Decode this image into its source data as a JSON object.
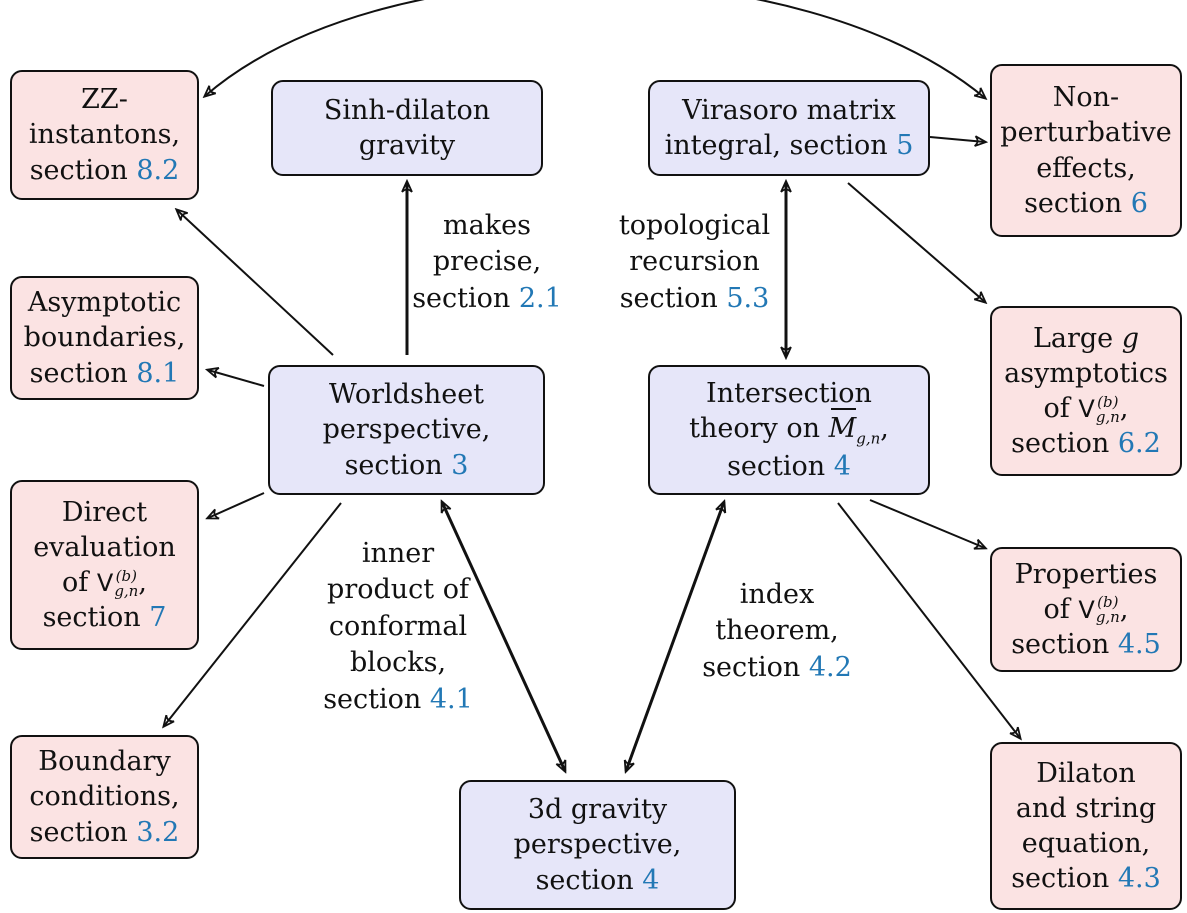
{
  "nodes": {
    "sinh_dilaton": {
      "lines": [
        "Sinh-dilaton",
        "gravity"
      ]
    },
    "virasoro": {
      "line1": "Virasoro matrix",
      "line2_text": "integral, section ",
      "ref": "5"
    },
    "worldsheet": {
      "line1": "Worldsheet",
      "line2": "perspective,",
      "line3_text": "section ",
      "ref": "3"
    },
    "intersection": {
      "line1": "Intersection",
      "line2_text": "theory on ",
      "moduli_symbol": "M",
      "moduli_sub": "g,n",
      "line2_suffix": ",",
      "line3_text": "section ",
      "ref": "4"
    },
    "gravity3d": {
      "line1": "3d gravity",
      "line2": "perspective,",
      "line3_text": "section ",
      "ref": "4"
    },
    "zz": {
      "line1": "ZZ-",
      "line2": "instantons,",
      "line3_text": "section ",
      "ref": "8.2"
    },
    "asymptotic": {
      "line1": "Asymptotic",
      "line2": "boundaries,",
      "line3_text": "section ",
      "ref": "8.1"
    },
    "direct": {
      "line1": "Direct",
      "line2": "evaluation",
      "line3_prefix": "of ",
      "vol_symbol": "V",
      "vol_sup": "(b)",
      "vol_sub": "g,n",
      "line3_suffix": ",",
      "line4_text": "section ",
      "ref": "7"
    },
    "boundary": {
      "line1": "Boundary",
      "line2": "conditions,",
      "line3_text": "section ",
      "ref": "3.2"
    },
    "nonpert": {
      "line1": "Non-",
      "line2": "perturbative",
      "line3": "effects,",
      "line4_text": "section ",
      "ref": "6"
    },
    "largeg": {
      "line1_text": "Large ",
      "line1_var": "g",
      "line2": "asymptotics",
      "line3_prefix": "of ",
      "vol_symbol": "V",
      "vol_sup": "(b)",
      "vol_sub": "g,n",
      "line3_suffix": ",",
      "line4_text": "section ",
      "ref": "6.2"
    },
    "properties": {
      "line1": "Properties",
      "line2_prefix": "of ",
      "vol_symbol": "V",
      "vol_sup": "(b)",
      "vol_sub": "g,n",
      "line2_suffix": ",",
      "line3_text": "section ",
      "ref": "4.5"
    },
    "dilaton_string": {
      "line1": "Dilaton",
      "line2": "and string",
      "line3": "equation,",
      "line4_text": "section ",
      "ref": "4.3"
    }
  },
  "edge_labels": {
    "makes_precise": {
      "line1": "makes",
      "line2": "precise,",
      "line3_text": "section ",
      "ref": "2.1"
    },
    "topological_recursion": {
      "line1": "topological",
      "line2": "recursion",
      "line3_text": "section ",
      "ref": "5.3"
    },
    "inner_product": {
      "line1": "inner",
      "line2": "product of",
      "line3": "conformal",
      "line4": "blocks,",
      "line5_text": "section ",
      "ref": "4.1"
    },
    "index_theorem": {
      "line1": "index",
      "line2": "theorem,",
      "line3_text": "section ",
      "ref": "4.2"
    }
  },
  "colors": {
    "main_fill": "#e6e6f9",
    "result_fill": "#fbe3e3",
    "ref_link": "#2278b5",
    "stroke": "#111111"
  }
}
